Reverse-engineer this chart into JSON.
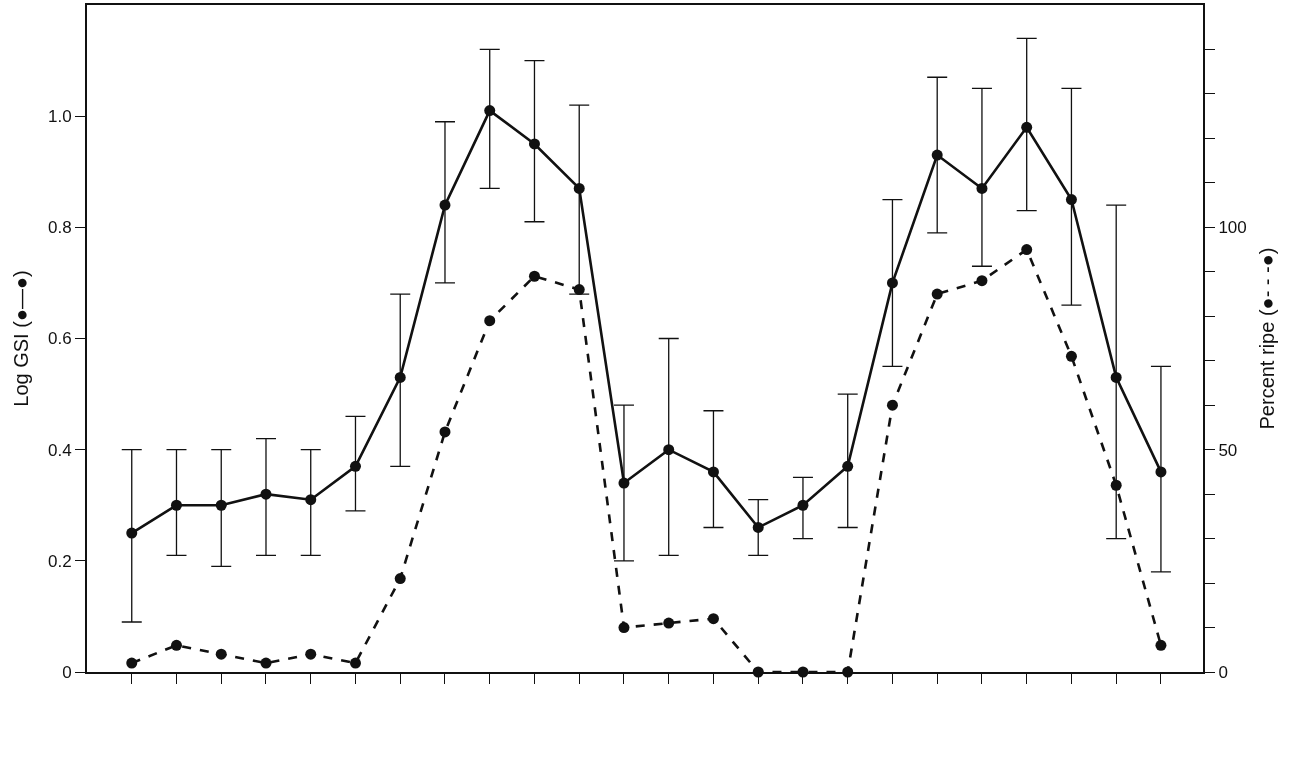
{
  "chart_data": {
    "type": "line",
    "ylabel": "Log GSI (●—●)",
    "y2label": "Percent ripe (●- - -●)",
    "categories": [
      null,
      null,
      null,
      null,
      null,
      null,
      null,
      null,
      null,
      null,
      null,
      null,
      null,
      null,
      null,
      null,
      null,
      null,
      null,
      null,
      null,
      null,
      null,
      null
    ],
    "series": [
      {
        "color": "#111111",
        "line_style": "solid",
        "values": [
          0.25,
          0.3,
          0.3,
          0.32,
          0.31,
          0.37,
          0.53,
          0.84,
          1.01,
          0.95,
          0.87,
          0.34,
          0.4,
          0.36,
          0.26,
          0.3,
          0.37,
          0.7,
          0.93,
          0.87,
          0.98,
          0.85,
          0.53,
          0.36
        ],
        "errors": [
          [
            0.09,
            0.4
          ],
          [
            0.21,
            0.4
          ],
          [
            0.19,
            0.4
          ],
          [
            0.21,
            0.42
          ],
          [
            0.21,
            0.4
          ],
          [
            0.29,
            0.46
          ],
          [
            0.37,
            0.68
          ],
          [
            0.7,
            0.99
          ],
          [
            0.87,
            1.12
          ],
          [
            0.81,
            1.1
          ],
          [
            0.68,
            1.02
          ],
          [
            0.2,
            0.48
          ],
          [
            0.21,
            0.6
          ],
          [
            0.26,
            0.47
          ],
          [
            0.21,
            0.31
          ],
          [
            0.24,
            0.35
          ],
          [
            0.26,
            0.5
          ],
          [
            0.55,
            0.85
          ],
          [
            0.79,
            1.07
          ],
          [
            0.73,
            1.05
          ],
          [
            0.83,
            1.14
          ],
          [
            0.66,
            1.05
          ],
          [
            0.24,
            0.84
          ],
          [
            0.18,
            0.55
          ]
        ]
      },
      {
        "color": "#111111",
        "line_style": "dashed",
        "axis": "y2",
        "values": [
          2,
          6,
          4,
          2,
          4,
          2,
          21,
          54,
          79,
          89,
          86,
          10,
          11,
          12,
          0,
          0,
          0,
          60,
          85,
          88,
          95,
          71,
          42,
          6
        ]
      }
    ],
    "marker": "circle",
    "ylim": [
      0,
      1.2
    ],
    "yticks": [
      0,
      0.2,
      0.4,
      0.6,
      0.8,
      {
        "value": 1.0,
        "label": "1.0"
      }
    ],
    "y2lim": [
      0,
      150
    ],
    "y2ticks": [
      0,
      {
        "value": 10,
        "label": null
      },
      {
        "value": 20,
        "label": null
      },
      {
        "value": 30,
        "label": null
      },
      {
        "value": 40,
        "label": null
      },
      50,
      {
        "value": 60,
        "label": null
      },
      {
        "value": 70,
        "label": null
      },
      {
        "value": 80,
        "label": null
      },
      {
        "value": 90,
        "label": null
      },
      100,
      {
        "value": 110,
        "label": null
      },
      {
        "value": 120,
        "label": null
      },
      {
        "value": 130,
        "label": null
      },
      {
        "value": 140,
        "label": null
      }
    ],
    "legend": false
  }
}
